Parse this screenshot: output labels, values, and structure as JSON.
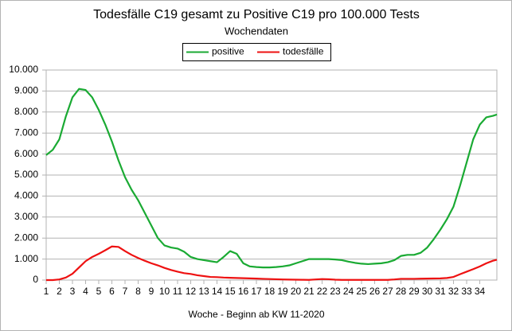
{
  "chart_data": {
    "type": "line",
    "title": "Todesfälle C19 gesamt zu Positive C19 pro 100.000 Tests",
    "subtitle": "Wochendaten",
    "x_label": "Woche - Beginn ab KW 11-2020",
    "x": [
      1,
      1.5,
      2,
      2.5,
      3,
      3.5,
      4,
      4.5,
      5,
      5.5,
      6,
      6.5,
      7,
      7.5,
      8,
      8.5,
      9,
      9.5,
      10,
      10.5,
      11,
      11.5,
      12,
      12.5,
      13,
      13.5,
      14,
      14.5,
      15,
      15.5,
      16,
      16.5,
      17,
      17.5,
      18,
      18.5,
      19,
      19.5,
      20,
      20.5,
      21,
      21.5,
      22,
      22.5,
      23,
      23.5,
      24,
      24.5,
      25,
      25.5,
      26,
      26.5,
      27,
      27.5,
      28,
      28.5,
      29,
      29.5,
      30,
      30.5,
      31,
      31.5,
      32,
      32.5,
      33,
      33.5,
      34,
      34.5,
      35,
      35.3
    ],
    "series": [
      {
        "name": "positive",
        "color": "#1aaa33",
        "values": [
          5950,
          6200,
          6700,
          7800,
          8700,
          9100,
          9050,
          8700,
          8100,
          7400,
          6600,
          5700,
          4900,
          4300,
          3800,
          3200,
          2600,
          2000,
          1650,
          1550,
          1500,
          1350,
          1100,
          1000,
          950,
          900,
          850,
          1100,
          1380,
          1250,
          800,
          650,
          620,
          600,
          600,
          620,
          650,
          700,
          800,
          900,
          1000,
          1000,
          1000,
          1000,
          980,
          950,
          880,
          820,
          780,
          760,
          780,
          800,
          850,
          950,
          1150,
          1200,
          1200,
          1300,
          1550,
          1950,
          2400,
          2900,
          3500,
          4500,
          5600,
          6700,
          7400,
          7750,
          7820,
          7880
        ]
      },
      {
        "name": "todesfälle",
        "color": "#ee1111",
        "values": [
          0,
          0,
          30,
          120,
          300,
          600,
          900,
          1100,
          1250,
          1420,
          1600,
          1580,
          1380,
          1200,
          1050,
          920,
          800,
          700,
          580,
          480,
          400,
          330,
          290,
          230,
          190,
          150,
          140,
          120,
          110,
          100,
          90,
          80,
          70,
          60,
          50,
          40,
          30,
          25,
          20,
          15,
          10,
          30,
          50,
          40,
          20,
          10,
          10,
          10,
          10,
          10,
          10,
          10,
          10,
          30,
          60,
          60,
          60,
          65,
          70,
          75,
          80,
          100,
          150,
          280,
          400,
          520,
          650,
          800,
          920,
          970
        ]
      }
    ],
    "xlim": [
      1,
      35.3
    ],
    "xticks": [
      1,
      2,
      3,
      4,
      5,
      6,
      7,
      8,
      9,
      10,
      11,
      12,
      13,
      14,
      15,
      16,
      17,
      18,
      19,
      20,
      21,
      22,
      23,
      24,
      25,
      26,
      27,
      28,
      29,
      30,
      31,
      32,
      33,
      34
    ],
    "ylim": [
      0,
      10000
    ],
    "yticks": [
      0,
      {
        "value": 1000,
        "label": "1.000"
      },
      {
        "value": 2000,
        "label": "2.000"
      },
      {
        "value": 3000,
        "label": "3.000"
      },
      {
        "value": 4000,
        "label": "4.000"
      },
      {
        "value": 5000,
        "label": "5.000"
      },
      {
        "value": 6000,
        "label": "6.000"
      },
      {
        "value": 7000,
        "label": "7.000"
      },
      {
        "value": 8000,
        "label": "8.000"
      },
      {
        "value": 9000,
        "label": "9.000"
      },
      {
        "value": 10000,
        "label": "10.000"
      }
    ],
    "grid": true,
    "legend": "top"
  }
}
